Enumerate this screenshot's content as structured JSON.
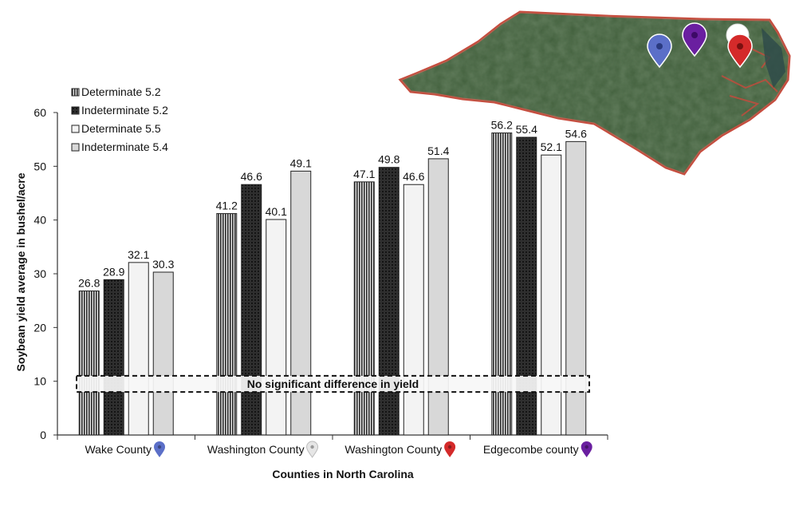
{
  "chart_data": {
    "type": "bar",
    "title": "",
    "xlabel": "Counties in North Carolina",
    "ylabel": "Soybean yield average in bushel/acre",
    "ylim": [
      0,
      60
    ],
    "yticks": [
      0,
      10,
      20,
      30,
      40,
      50,
      60
    ],
    "categories": [
      {
        "label": "Wake County",
        "pin_color": "#5b6fc8"
      },
      {
        "label": "Washington County",
        "pin_color": "#e6e6e6"
      },
      {
        "label": "Washington County",
        "pin_color": "#d42a2a"
      },
      {
        "label": "Edgecombe county",
        "pin_color": "#6a1fa0"
      }
    ],
    "series": [
      {
        "name": "Determinate 5.2",
        "pattern": "vertical-lines",
        "values": [
          26.8,
          41.2,
          47.1,
          56.2
        ]
      },
      {
        "name": "Indeterminate 5.2",
        "pattern": "dark-crosshatch",
        "values": [
          28.9,
          46.6,
          49.8,
          55.4
        ]
      },
      {
        "name": "Determinate 5.5",
        "pattern": "white",
        "values": [
          32.1,
          40.1,
          46.6,
          52.1
        ]
      },
      {
        "name": "Indeterminate 5.4",
        "pattern": "light-gray",
        "values": [
          30.3,
          49.1,
          51.4,
          54.6
        ]
      }
    ],
    "annotation": {
      "text": "No significant difference in yield",
      "y_from": 8,
      "y_to": 11
    },
    "legend_position": "top-left",
    "grid": false
  },
  "map": {
    "region": "North Carolina",
    "outline_color": "#c84a3c",
    "land_color": "#3f5c3a",
    "markers": [
      {
        "name": "Wake County",
        "color": "#5b6fc8"
      },
      {
        "name": "Edgecombe county",
        "color": "#6a1fa0"
      },
      {
        "name": "Washington County",
        "color": "#e6e6e6"
      },
      {
        "name": "Washington County",
        "color": "#d42a2a"
      }
    ]
  }
}
